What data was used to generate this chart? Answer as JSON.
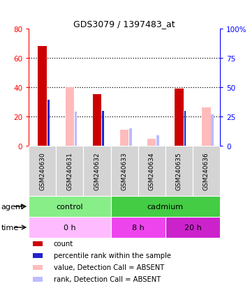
{
  "title": "GDS3079 / 1397483_at",
  "samples": [
    "GSM240630",
    "GSM240631",
    "GSM240632",
    "GSM240633",
    "GSM240634",
    "GSM240635",
    "GSM240636"
  ],
  "red_bars": [
    68,
    0,
    35,
    0,
    0,
    39,
    0
  ],
  "pink_bars": [
    0,
    40,
    0,
    11,
    5,
    0,
    26
  ],
  "blue_bars": [
    39,
    0,
    30,
    0,
    0,
    30,
    0
  ],
  "light_blue_bars": [
    0,
    29,
    0,
    15,
    9,
    0,
    27
  ],
  "red_color": "#cc0000",
  "blue_color": "#2222cc",
  "pink_color": "#ffbbbb",
  "light_blue_color": "#bbbbff",
  "ylim_left": [
    0,
    80
  ],
  "ylim_right": [
    0,
    100
  ],
  "yticks_left": [
    0,
    20,
    40,
    60,
    80
  ],
  "yticks_right": [
    0,
    25,
    50,
    75,
    100
  ],
  "ytick_labels_right": [
    "0",
    "25",
    "50",
    "75",
    "100%"
  ],
  "agent_groups": [
    {
      "label": "control",
      "start": 0,
      "end": 3,
      "color": "#88ee88"
    },
    {
      "label": "cadmium",
      "start": 3,
      "end": 7,
      "color": "#44cc44"
    }
  ],
  "time_groups": [
    {
      "label": "0 h",
      "start": 0,
      "end": 3,
      "color": "#ffbbff"
    },
    {
      "label": "8 h",
      "start": 3,
      "end": 5,
      "color": "#ee44ee"
    },
    {
      "label": "20 h",
      "start": 5,
      "end": 7,
      "color": "#cc22cc"
    }
  ],
  "legend_items": [
    {
      "label": "count",
      "color": "#cc0000"
    },
    {
      "label": "percentile rank within the sample",
      "color": "#2222cc"
    },
    {
      "label": "value, Detection Call = ABSENT",
      "color": "#ffbbbb"
    },
    {
      "label": "rank, Detection Call = ABSENT",
      "color": "#bbbbff"
    }
  ]
}
